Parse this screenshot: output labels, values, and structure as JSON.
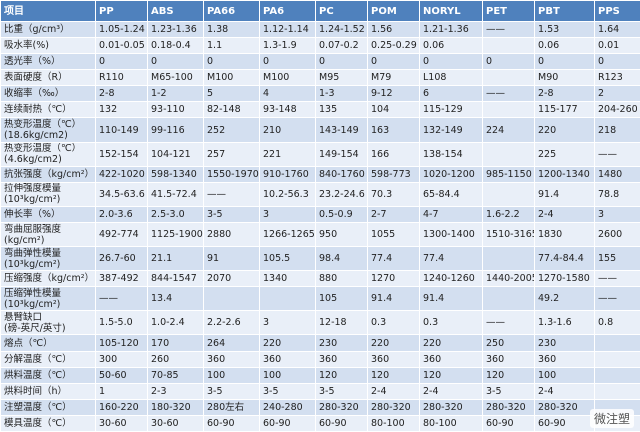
{
  "table": {
    "header": [
      "项目",
      "PP",
      "ABS",
      "PA66",
      "PA6",
      "PC",
      "POM",
      "NORYL",
      "PET",
      "PBT",
      "PPS"
    ],
    "rows": [
      [
        [
          "比重（g/cm³）"
        ],
        "1.05-1.24",
        "1.23-1.36",
        "1.38",
        "1.12-1.14",
        "1.24-1.52",
        "1.56",
        "1.21-1.36",
        "——",
        "1.53",
        "1.64"
      ],
      [
        [
          "吸水率(%)"
        ],
        "0.01-0.05",
        "0.18-0.4",
        "1.1",
        "1.3-1.9",
        "0.07-0.2",
        "0.25-0.29",
        "0.06",
        null,
        "0.06",
        "0.01"
      ],
      [
        [
          "透光率（%）"
        ],
        "0",
        "0",
        "0",
        "0",
        "0",
        "0",
        "0",
        "0",
        "0",
        "0"
      ],
      [
        [
          "表面硬度（R）"
        ],
        "R110",
        "M65-100",
        "M100",
        "M100",
        "M95",
        "M79",
        "L108",
        null,
        "M90",
        "R123"
      ],
      [
        [
          "收缩率（‰）"
        ],
        "2-8",
        "1-2",
        "5",
        "4",
        "1-3",
        "9-12",
        "6",
        "——",
        "2-8",
        "2"
      ],
      [
        [
          "连续耐热（℃）"
        ],
        "132",
        "93-110",
        "82-148",
        "93-148",
        "135",
        "104",
        "115-129",
        null,
        "115-177",
        "204-260"
      ],
      [
        [
          "热变形温度（℃）",
          "(18.6kg/cm2)"
        ],
        "110-149",
        "99-116",
        "252",
        "210",
        "143-149",
        "163",
        "132-149",
        "224",
        "220",
        "218"
      ],
      [
        [
          "热变形温度（℃）",
          "(4.6kg/cm2)"
        ],
        "152-154",
        "104-121",
        "257",
        "221",
        "149-154",
        "166",
        "138-154",
        null,
        "225",
        "——"
      ],
      [
        [
          "抗张强度（kg/cm²）"
        ],
        "422-1020",
        "598-1340",
        "1550-1970",
        "910-1760",
        "840-1760",
        "598-773",
        "1020-1200",
        "985-1150",
        "1200-1340",
        "1480"
      ],
      [
        [
          "拉伸强度模量",
          "(10³kg/cm²)"
        ],
        "34.5-63.6",
        "41.5-72.4",
        "——",
        "10.2-56.3",
        "23.2-24.6",
        "70.3",
        "65-84.4",
        null,
        "91.4",
        "78.8"
      ],
      [
        [
          "伸长率（%）"
        ],
        "2.0-3.6",
        "2.5-3.0",
        "3-5",
        "3",
        "0.5-0.9",
        "2-7",
        "4-7",
        "1.6-2.2",
        "2-4",
        "3"
      ],
      [
        [
          "弯曲屈服强度",
          "(kg/cm²)"
        ],
        "492-774",
        "1125-1900",
        "2880",
        "1266-1265",
        "950",
        "1055",
        "1300-1400",
        "1510-3165",
        "1830",
        "2600"
      ],
      [
        [
          "弯曲弹性模量",
          "(10³kg/cm²)"
        ],
        "26.7-60",
        "21.1",
        "91",
        "105.5",
        "98.4",
        "77.4",
        "77.4",
        null,
        "77.4-84.4",
        "155"
      ],
      [
        [
          "压缩强度（kg/cm²）"
        ],
        "387-492",
        "844-1547",
        "2070",
        "1340",
        "880",
        "1270",
        "1240-1260",
        "1440-2005",
        "1270-1580",
        "——"
      ],
      [
        [
          "压缩弹性模量",
          "(10³kg/cm²)"
        ],
        "——",
        "13.4",
        null,
        null,
        "105",
        "91.4",
        "91.4",
        null,
        "49.2",
        "——"
      ],
      [
        [
          "悬臂缺口",
          "(磅-英尺/英寸)"
        ],
        "1.5-5.0",
        "1.0-2.4",
        "2.2-2.6",
        "3",
        "12-18",
        "0.3",
        "0.3",
        "——",
        "1.3-1.6",
        "0.8"
      ],
      [
        [
          "熔点（℃）"
        ],
        "105-120",
        "170",
        "264",
        "220",
        "230",
        "220",
        "220",
        "250",
        "230",
        null
      ],
      [
        [
          "分解温度（℃）"
        ],
        "300",
        "260",
        "360",
        "360",
        "360",
        "360",
        "360",
        "360",
        "360",
        null
      ],
      [
        [
          "烘料温度（℃）"
        ],
        "50-60",
        "70-85",
        "100",
        "100",
        "120",
        "120",
        "120",
        "120",
        "100",
        null
      ],
      [
        [
          "烘料时间（h）"
        ],
        "1",
        "2-3",
        "3-5",
        "3-5",
        "3-5",
        "2-4",
        "2-4",
        "3-5",
        "2-4",
        null
      ],
      [
        [
          "注塑温度（℃）"
        ],
        "160-220",
        "180-320",
        "280左右",
        "240-280",
        "280-320",
        "280-320",
        "280-320",
        "280-320",
        "280-320",
        null
      ],
      [
        [
          "模具温度（℃）"
        ],
        "30-60",
        "30-60",
        "60-90",
        "60-90",
        "60-90",
        "80-100",
        "80-100",
        "60-90",
        "60-90",
        null
      ]
    ]
  },
  "watermark": "微注塑"
}
